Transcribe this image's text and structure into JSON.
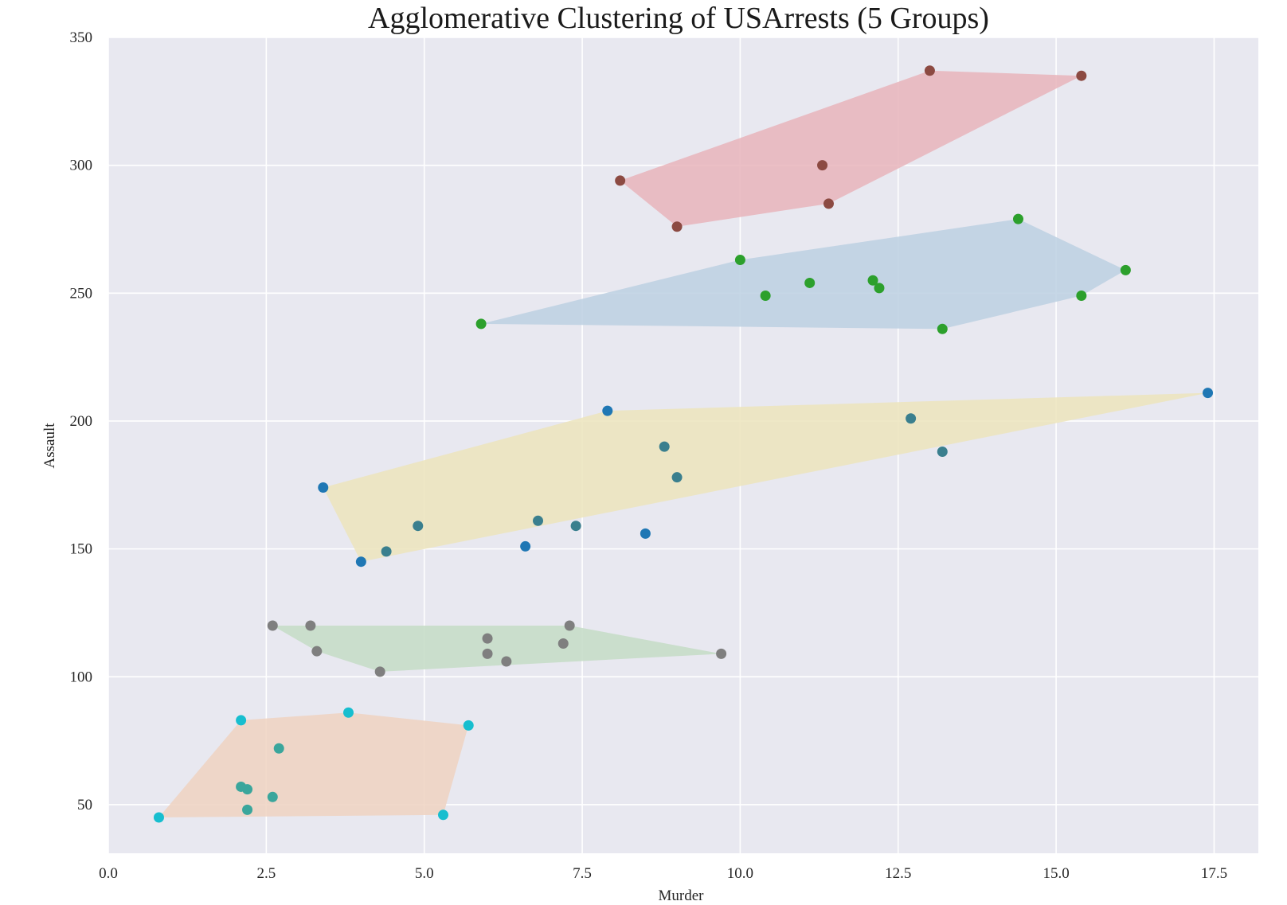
{
  "chart_data": {
    "type": "scatter",
    "title": "Agglomerative Clustering of USArrests (5 Groups)",
    "xlabel": "Murder",
    "ylabel": "Assault",
    "xlim": [
      0,
      18.2
    ],
    "ylim": [
      31,
      350
    ],
    "xticks": [
      0.0,
      2.5,
      5.0,
      7.5,
      10.0,
      12.5,
      15.0,
      17.5
    ],
    "xtick_labels": [
      "0.0",
      "2.5",
      "5.0",
      "7.5",
      "10.0",
      "12.5",
      "15.0",
      "17.5"
    ],
    "yticks": [
      50,
      100,
      150,
      200,
      250,
      300,
      350
    ],
    "ytick_labels": [
      "50",
      "100",
      "150",
      "200",
      "250",
      "300",
      "350"
    ],
    "grid": true,
    "background": "#e8e8f0",
    "clusters": [
      {
        "hull_color": "#e8b4bb",
        "points": [
          {
            "x": 13.0,
            "y": 337,
            "color": "#8c4a42"
          },
          {
            "x": 15.4,
            "y": 335,
            "color": "#8c4a42"
          },
          {
            "x": 8.1,
            "y": 294,
            "color": "#8c4a42"
          },
          {
            "x": 11.3,
            "y": 300,
            "color": "#8c4a42"
          },
          {
            "x": 11.4,
            "y": 285,
            "color": "#8c4a42"
          },
          {
            "x": 9.0,
            "y": 276,
            "color": "#8c4a42"
          }
        ],
        "hull": [
          [
            13.0,
            337
          ],
          [
            15.4,
            335
          ],
          [
            11.4,
            285
          ],
          [
            9.0,
            276
          ],
          [
            8.1,
            294
          ]
        ]
      },
      {
        "hull_color": "#bcd0e2",
        "points": [
          {
            "x": 14.4,
            "y": 279,
            "color": "#2ca02c"
          },
          {
            "x": 10.0,
            "y": 263,
            "color": "#2ca02c"
          },
          {
            "x": 16.1,
            "y": 259,
            "color": "#2ca02c"
          },
          {
            "x": 12.1,
            "y": 255,
            "color": "#2ca02c"
          },
          {
            "x": 11.1,
            "y": 254,
            "color": "#2ca02c"
          },
          {
            "x": 12.2,
            "y": 252,
            "color": "#2ca02c"
          },
          {
            "x": 10.4,
            "y": 249,
            "color": "#2ca02c"
          },
          {
            "x": 15.4,
            "y": 249,
            "color": "#2ca02c"
          },
          {
            "x": 5.9,
            "y": 238,
            "color": "#2ca02c"
          },
          {
            "x": 13.2,
            "y": 236,
            "color": "#2ca02c"
          }
        ],
        "hull": [
          [
            5.9,
            238
          ],
          [
            10.0,
            263
          ],
          [
            14.4,
            279
          ],
          [
            16.1,
            259
          ],
          [
            15.4,
            249
          ],
          [
            13.2,
            236
          ]
        ]
      },
      {
        "hull_color": "#ece4bc",
        "points": [
          {
            "x": 17.4,
            "y": 211,
            "color": "#1f77b4"
          },
          {
            "x": 7.9,
            "y": 204,
            "color": "#1f77b4"
          },
          {
            "x": 12.7,
            "y": 201,
            "color": "#3a7f8e"
          },
          {
            "x": 8.8,
            "y": 190,
            "color": "#3a7f8e"
          },
          {
            "x": 13.2,
            "y": 188,
            "color": "#3a7f8e"
          },
          {
            "x": 9.0,
            "y": 178,
            "color": "#3a7f8e"
          },
          {
            "x": 3.4,
            "y": 174,
            "color": "#1f77b4"
          },
          {
            "x": 6.8,
            "y": 161,
            "color": "#3a7f8e"
          },
          {
            "x": 4.9,
            "y": 159,
            "color": "#3a7f8e"
          },
          {
            "x": 7.4,
            "y": 159,
            "color": "#3a7f8e"
          },
          {
            "x": 8.5,
            "y": 156,
            "color": "#1f77b4"
          },
          {
            "x": 6.6,
            "y": 151,
            "color": "#1f77b4"
          },
          {
            "x": 4.4,
            "y": 149,
            "color": "#3a7f8e"
          },
          {
            "x": 4.0,
            "y": 145,
            "color": "#1f77b4"
          }
        ],
        "hull": [
          [
            3.4,
            174
          ],
          [
            7.9,
            204
          ],
          [
            17.4,
            211
          ],
          [
            4.0,
            145
          ]
        ]
      },
      {
        "hull_color": "#c4dcc6",
        "points": [
          {
            "x": 2.6,
            "y": 120,
            "color": "#7f7f7f"
          },
          {
            "x": 3.2,
            "y": 120,
            "color": "#7f7f7f"
          },
          {
            "x": 7.3,
            "y": 120,
            "color": "#7f7f7f"
          },
          {
            "x": 6.0,
            "y": 115,
            "color": "#7f7f7f"
          },
          {
            "x": 7.2,
            "y": 113,
            "color": "#7f7f7f"
          },
          {
            "x": 3.3,
            "y": 110,
            "color": "#7f7f7f"
          },
          {
            "x": 6.0,
            "y": 109,
            "color": "#7f7f7f"
          },
          {
            "x": 9.7,
            "y": 109,
            "color": "#7f7f7f"
          },
          {
            "x": 6.3,
            "y": 106,
            "color": "#7f7f7f"
          },
          {
            "x": 4.3,
            "y": 102,
            "color": "#7f7f7f"
          }
        ],
        "hull": [
          [
            2.6,
            120
          ],
          [
            7.3,
            120
          ],
          [
            9.7,
            109
          ],
          [
            4.3,
            102
          ],
          [
            3.3,
            110
          ]
        ]
      },
      {
        "hull_color": "#efd2c1",
        "points": [
          {
            "x": 3.8,
            "y": 86,
            "color": "#17becf"
          },
          {
            "x": 2.1,
            "y": 83,
            "color": "#17becf"
          },
          {
            "x": 5.7,
            "y": 81,
            "color": "#17becf"
          },
          {
            "x": 2.7,
            "y": 72,
            "color": "#3aa69c"
          },
          {
            "x": 2.1,
            "y": 57,
            "color": "#3aa69c"
          },
          {
            "x": 2.2,
            "y": 56,
            "color": "#3aa69c"
          },
          {
            "x": 2.6,
            "y": 53,
            "color": "#3aa69c"
          },
          {
            "x": 2.2,
            "y": 48,
            "color": "#3aa69c"
          },
          {
            "x": 5.3,
            "y": 46,
            "color": "#17becf"
          },
          {
            "x": 0.8,
            "y": 45,
            "color": "#17becf"
          }
        ],
        "hull": [
          [
            0.8,
            45
          ],
          [
            2.1,
            83
          ],
          [
            3.8,
            86
          ],
          [
            5.7,
            81
          ],
          [
            5.3,
            46
          ]
        ]
      }
    ]
  }
}
